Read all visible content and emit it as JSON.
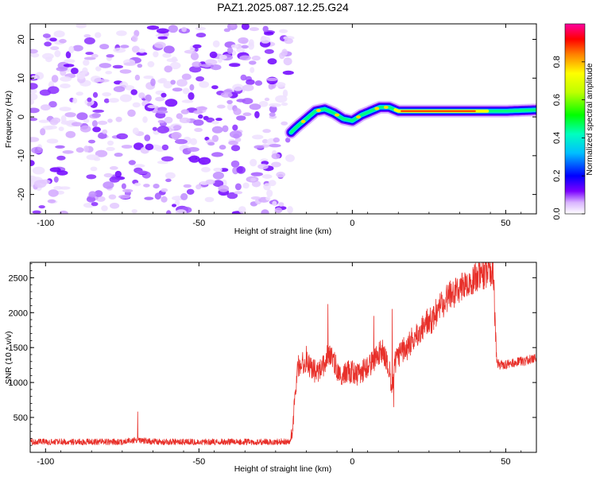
{
  "chart_data": [
    {
      "type": "heatmap",
      "title": "PAZ1.2025.087.12.25.G24",
      "xlabel": "Height of straight line (km)",
      "ylabel": "Frequency (Hz)",
      "xlim": [
        -105,
        60
      ],
      "ylim": [
        -25,
        24
      ],
      "xticks": [
        -100,
        -50,
        0,
        50
      ],
      "yticks": [
        -20,
        -10,
        0,
        10,
        20
      ],
      "colorbar": {
        "label": "Normalized spectral amplitude",
        "range": [
          0,
          1
        ],
        "ticks": [
          "0.0",
          "0.2",
          "0.4",
          "0.6",
          "0.8"
        ]
      },
      "noise_region": {
        "x": [
          -105,
          -20
        ],
        "y": [
          -25,
          24
        ],
        "amplitude_range": [
          0.0,
          0.15
        ]
      },
      "signal_ridge": {
        "x": [
          -20,
          -18,
          -15,
          -12,
          -9,
          -6,
          -3,
          0,
          3,
          6,
          9,
          12,
          15,
          20,
          30,
          40,
          50,
          60
        ],
        "freq": [
          -4.0,
          -2.5,
          -0.5,
          1.5,
          2.0,
          1.0,
          -0.5,
          -1.0,
          0.5,
          1.5,
          2.5,
          2.5,
          1.5,
          1.5,
          1.5,
          1.5,
          1.5,
          1.8
        ],
        "peak_amplitude": [
          0.4,
          0.45,
          0.5,
          0.55,
          0.6,
          0.6,
          0.65,
          0.65,
          0.7,
          0.75,
          0.8,
          0.85,
          0.9,
          0.95,
          1.0,
          0.95,
          0.75,
          0.6
        ]
      }
    },
    {
      "type": "line",
      "title": "",
      "xlabel": "Height of straight line (km)",
      "ylabel": "SNR (10 * v/v)",
      "xlim": [
        -105,
        60
      ],
      "ylim": [
        0,
        2720
      ],
      "xticks": [
        -100,
        -50,
        0,
        50
      ],
      "yticks": [
        500,
        1000,
        1500,
        2000,
        2500
      ],
      "series": [
        {
          "color": "#e8302a",
          "x": [
            -105,
            -95,
            -85,
            -75,
            -70,
            -65,
            -55,
            -45,
            -35,
            -25,
            -20,
            -19,
            -18,
            -16,
            -14,
            -12,
            -10,
            -8,
            -6,
            -4,
            -2,
            0,
            2,
            4,
            6,
            8,
            10,
            12,
            13,
            14,
            16,
            18,
            20,
            22,
            24,
            26,
            28,
            30,
            32,
            34,
            36,
            38,
            40,
            42,
            44,
            46,
            47,
            48,
            50,
            55,
            60
          ],
          "y": [
            150,
            150,
            150,
            150,
            180,
            150,
            150,
            150,
            150,
            150,
            160,
            600,
            1200,
            1300,
            1250,
            1150,
            1200,
            1400,
            1300,
            1100,
            1150,
            1150,
            1100,
            1200,
            1250,
            1400,
            1450,
            1200,
            900,
            1300,
            1450,
            1500,
            1650,
            1700,
            1850,
            1900,
            2050,
            2150,
            2250,
            2300,
            2400,
            2450,
            2500,
            2550,
            2560,
            2550,
            1300,
            1250,
            1250,
            1300,
            1350
          ],
          "spikes": [
            {
              "x": -70,
              "y": 580
            },
            {
              "x": -15,
              "y": 1520
            },
            {
              "x": -8,
              "y": 2120
            },
            {
              "x": 7,
              "y": 1950
            },
            {
              "x": 13,
              "y": 2050
            },
            {
              "x": 13.5,
              "y": 650
            },
            {
              "x": 45,
              "y": 2720
            }
          ]
        }
      ]
    }
  ],
  "colors": {
    "line": "#e8302a",
    "axis": "#000000",
    "noise": "#9b30ff"
  }
}
